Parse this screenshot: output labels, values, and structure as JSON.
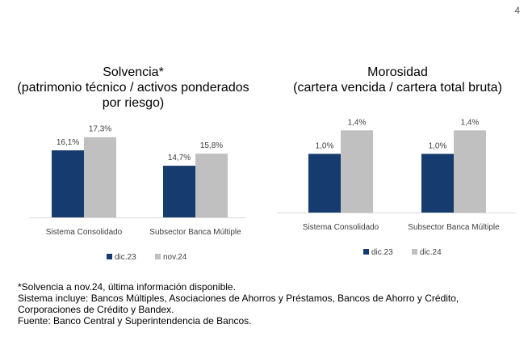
{
  "page_number": "4",
  "chart_data": [
    {
      "type": "bar",
      "title": "Solvencia*",
      "subtitle": "(patrimonio técnico / activos ponderados por riesgo)",
      "title_lines": [
        "Solvencia*",
        "(patrimonio técnico / activos ponderados",
        "por riesgo)"
      ],
      "categories": [
        "Sistema Consolidado",
        "Subsector Banca Múltiple"
      ],
      "series": [
        {
          "name": "dic.23",
          "values": [
            16.1,
            14.7
          ],
          "labels": [
            "16,1%",
            "14,7%"
          ],
          "color": "#163b6e"
        },
        {
          "name": "nov.24",
          "values": [
            17.3,
            15.8
          ],
          "labels": [
            "17,3%",
            "15,8%"
          ],
          "color": "#c0c0c0"
        }
      ],
      "ylim": [
        10,
        20
      ],
      "grid": false,
      "legend": "bottom",
      "xlabel": "",
      "ylabel": ""
    },
    {
      "type": "bar",
      "title": "Morosidad",
      "subtitle": "(cartera vencida / cartera total bruta)",
      "title_lines": [
        "Morosidad",
        "(cartera vencida / cartera total bruta)"
      ],
      "categories": [
        "Sistema Consolidado",
        "Subsector Banca Múltiple"
      ],
      "series": [
        {
          "name": "dic.23",
          "values": [
            1.0,
            1.0
          ],
          "labels": [
            "1,0%",
            "1,0%"
          ],
          "color": "#163b6e"
        },
        {
          "name": "dic.24",
          "values": [
            1.4,
            1.4
          ],
          "labels": [
            "1,4%",
            "1,4%"
          ],
          "color": "#c0c0c0"
        }
      ],
      "ylim": [
        0,
        1.9
      ],
      "grid": false,
      "legend": "bottom",
      "xlabel": "",
      "ylabel": ""
    }
  ],
  "notes": [
    "*Solvencia a nov.24, última información disponible.",
    "Sistema incluye: Bancos Múltiples, Asociaciones de Ahorros y Préstamos, Bancos de Ahorro y Crédito,",
    "Corporaciones de Crédito y Bandex.",
    "Fuente: Banco Central y Superintendencia de Bancos."
  ]
}
